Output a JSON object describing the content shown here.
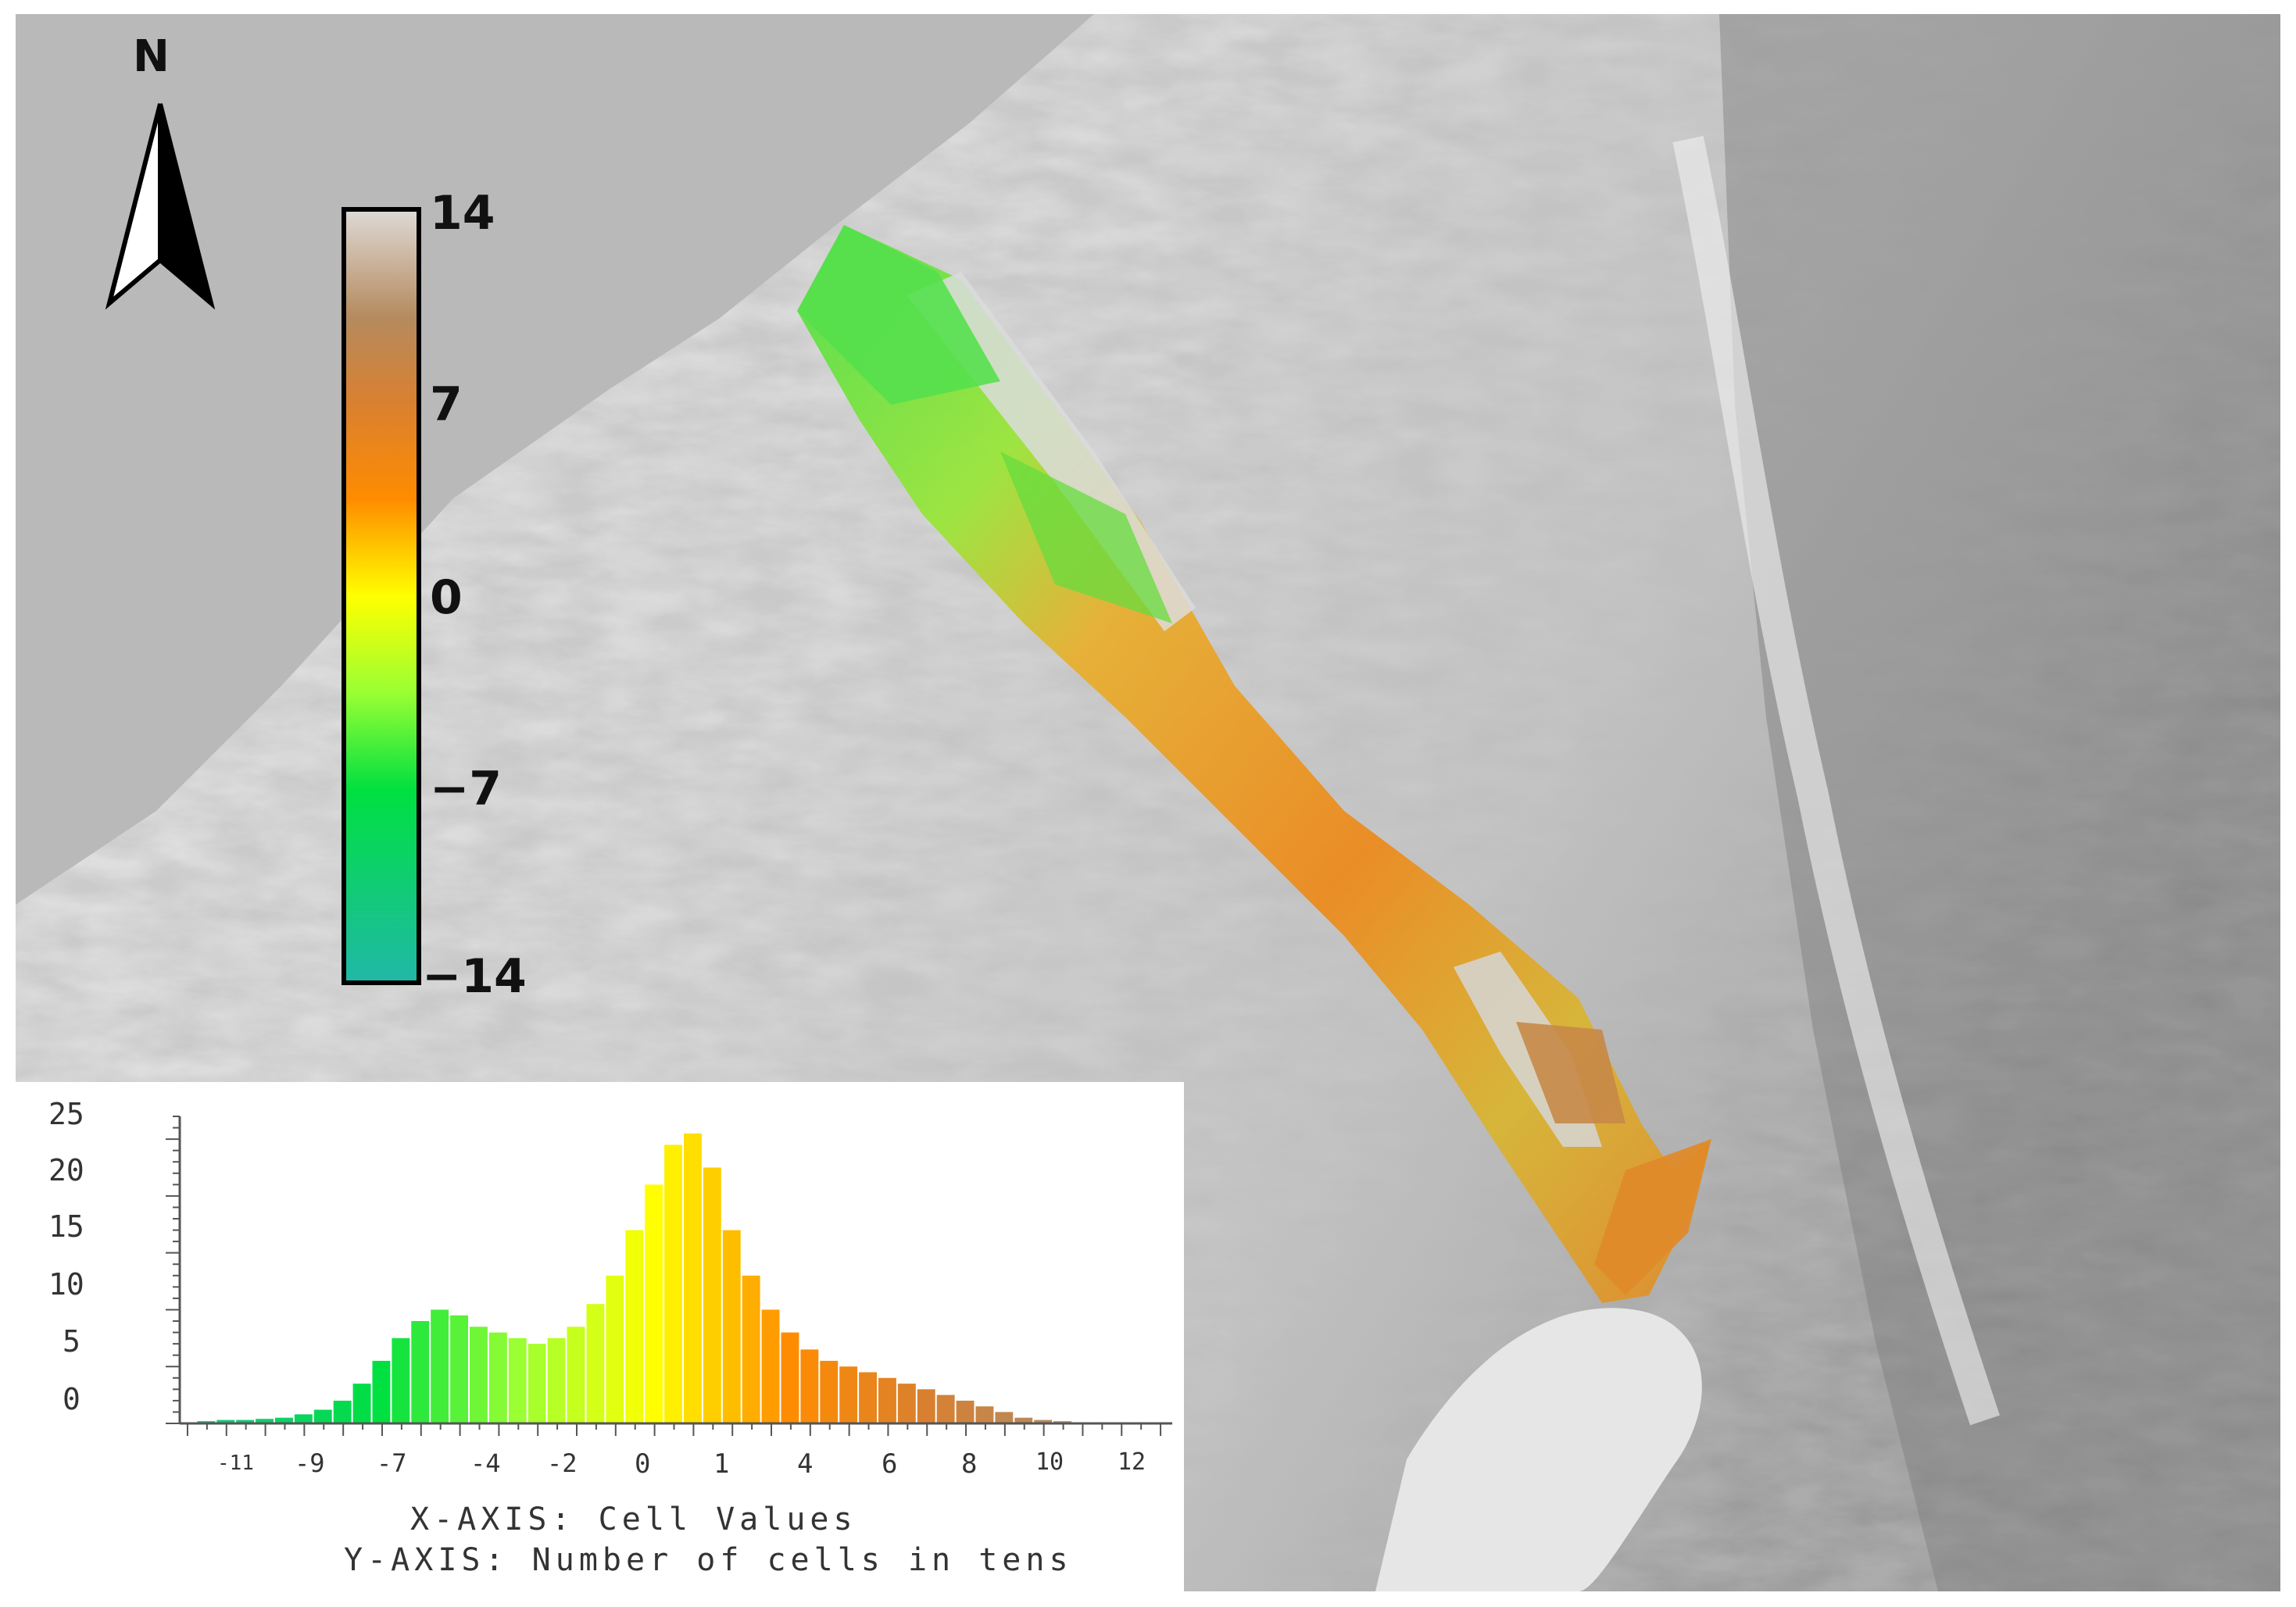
{
  "north_arrow": {
    "label": "N"
  },
  "legend": {
    "labels": [
      "14",
      "7",
      "0",
      "−7",
      "−14"
    ],
    "stops": [
      {
        "value": 14,
        "color": "#dedad6"
      },
      {
        "value": 10,
        "color": "#b58a5e"
      },
      {
        "value": 7,
        "color": "#d98030"
      },
      {
        "value": 3.5,
        "color": "#ff8c00"
      },
      {
        "value": 0,
        "color": "#ffff00"
      },
      {
        "value": -3.5,
        "color": "#9aff33"
      },
      {
        "value": -7,
        "color": "#00e040"
      },
      {
        "value": -14,
        "color": "#20b8a8"
      }
    ]
  },
  "histogram": {
    "x_ticks": [
      "-11",
      "-9",
      "-7",
      "-4",
      "-2",
      "0",
      "1",
      "4",
      "6",
      "8",
      "10",
      "12"
    ],
    "y_ticks": [
      "25",
      "20",
      "15",
      "10",
      "5",
      "0"
    ],
    "x_axis_text": "X-AXIS: Cell Values",
    "y_axis_text": "Y-AXIS: Number of cells in tens"
  },
  "chart_data": {
    "type": "bar",
    "x": [
      -11.5,
      -11.0,
      -10.5,
      -10.0,
      -9.5,
      -9.0,
      -8.5,
      -8.0,
      -7.5,
      -7.0,
      -6.5,
      -6.0,
      -5.5,
      -5.0,
      -4.5,
      -4.0,
      -3.5,
      -3.0,
      -2.5,
      -2.0,
      -1.5,
      -1.0,
      -0.5,
      0.0,
      0.5,
      1.0,
      1.5,
      2.0,
      2.5,
      3.0,
      3.5,
      4.0,
      4.5,
      5.0,
      5.5,
      6.0,
      6.5,
      7.0,
      7.5,
      8.0,
      8.5,
      9.0,
      9.5,
      10.0,
      10.5,
      11.0,
      11.5,
      12.0,
      12.5,
      13.0
    ],
    "values": [
      0.2,
      0.3,
      0.3,
      0.4,
      0.5,
      0.8,
      1.2,
      2.0,
      3.5,
      5.5,
      7.5,
      9.0,
      10.0,
      9.5,
      8.5,
      8.0,
      7.5,
      7.0,
      7.5,
      8.5,
      10.5,
      13.0,
      17.0,
      21.0,
      24.5,
      25.5,
      22.5,
      17.0,
      13.0,
      10.0,
      8.0,
      6.5,
      5.5,
      5.0,
      4.5,
      4.0,
      3.5,
      3.0,
      2.5,
      2.0,
      1.5,
      1.0,
      0.5,
      0.3,
      0.2,
      0.1,
      0.1,
      0.1,
      0.0,
      0.0
    ],
    "ylim": [
      0,
      27
    ],
    "xlim": [
      -12.2,
      13.3
    ]
  }
}
